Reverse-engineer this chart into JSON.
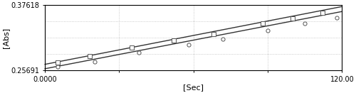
{
  "ymin": 0.25691,
  "ymax": 0.37618,
  "xmin": 0.0,
  "xmax": 120.0,
  "xlabel": "[Sec]",
  "ylabel": "[Abs]",
  "ytick_top": "0.37618",
  "ytick_bottom": "0.25691",
  "square_points_x": [
    5,
    18,
    35,
    52,
    68,
    88,
    100,
    112
  ],
  "square_points_y": [
    0.271,
    0.283,
    0.299,
    0.312,
    0.323,
    0.342,
    0.352,
    0.362
  ],
  "circle_points_x": [
    5,
    20,
    38,
    58,
    72,
    90,
    105,
    118
  ],
  "circle_points_y": [
    0.263,
    0.273,
    0.289,
    0.304,
    0.314,
    0.33,
    0.342,
    0.353
  ],
  "line_square_y_start": 0.268,
  "line_square_y_end": 0.373,
  "line_circle_y_start": 0.26,
  "line_circle_y_end": 0.364,
  "dot_color": "#555555",
  "line_color": "#333333",
  "grid_color": "#bbbbbb"
}
